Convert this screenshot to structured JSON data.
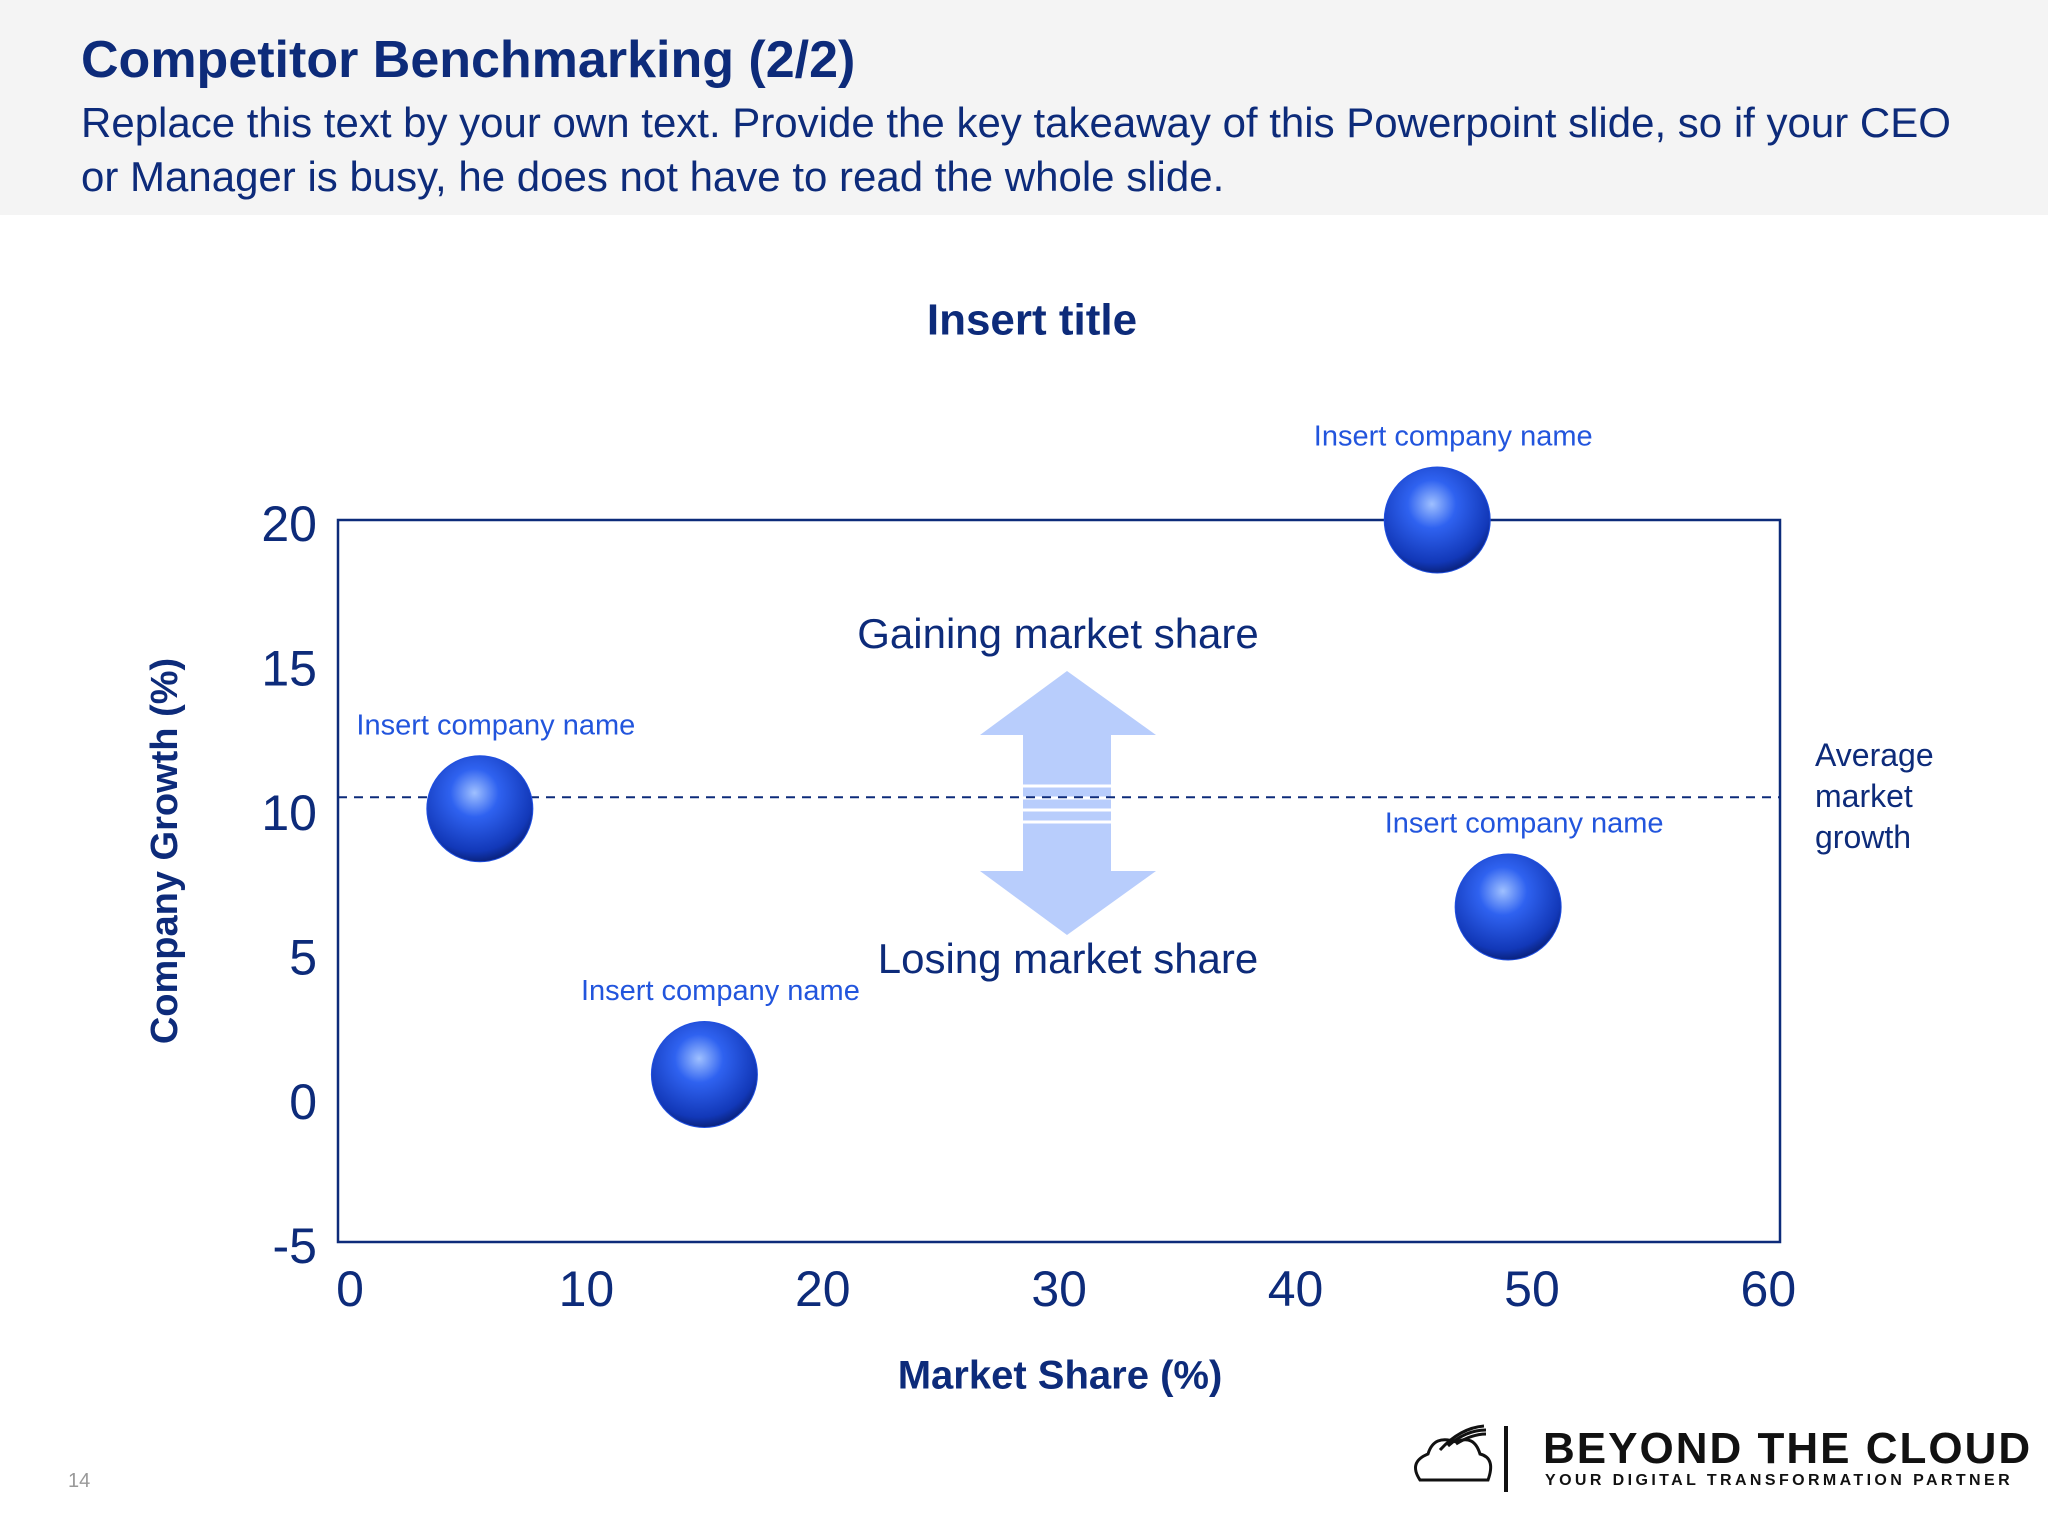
{
  "header": {
    "title": "Competitor Benchmarking (2/2)",
    "subtitle": "Replace this text by your own text. Provide the key takeaway of this Powerpoint slide, so if your CEO or Manager is busy, he does not have to read the whole slide."
  },
  "chart_data": {
    "type": "scatter",
    "title": "Insert title",
    "x_label": "Market Share (%)",
    "y_label": "Company Growth (%)",
    "x": [
      6,
      15.5,
      46.5,
      49.5
    ],
    "values": [
      10,
      0.8,
      20,
      6.6
    ],
    "color": "#1f4fe0",
    "point_labels": [
      "Insert company name",
      "Insert company name",
      "Insert company name",
      "Insert company name"
    ],
    "xlim": [
      0,
      61
    ],
    "xticks": [
      0,
      10,
      20,
      30,
      40,
      50,
      60
    ],
    "ylim": [
      -5,
      20
    ],
    "yticks": [
      -5,
      0,
      5,
      10,
      15,
      20
    ],
    "reference_line": {
      "value": 10.4,
      "label": "Average market growth"
    },
    "annotations": [
      "Gaining market share",
      "Losing market share"
    ]
  },
  "footer": {
    "page_number": 14,
    "brand": "BEYOND THE CLOUD",
    "tagline": "YOUR DIGITAL TRANSFORMATION PARTNER"
  }
}
